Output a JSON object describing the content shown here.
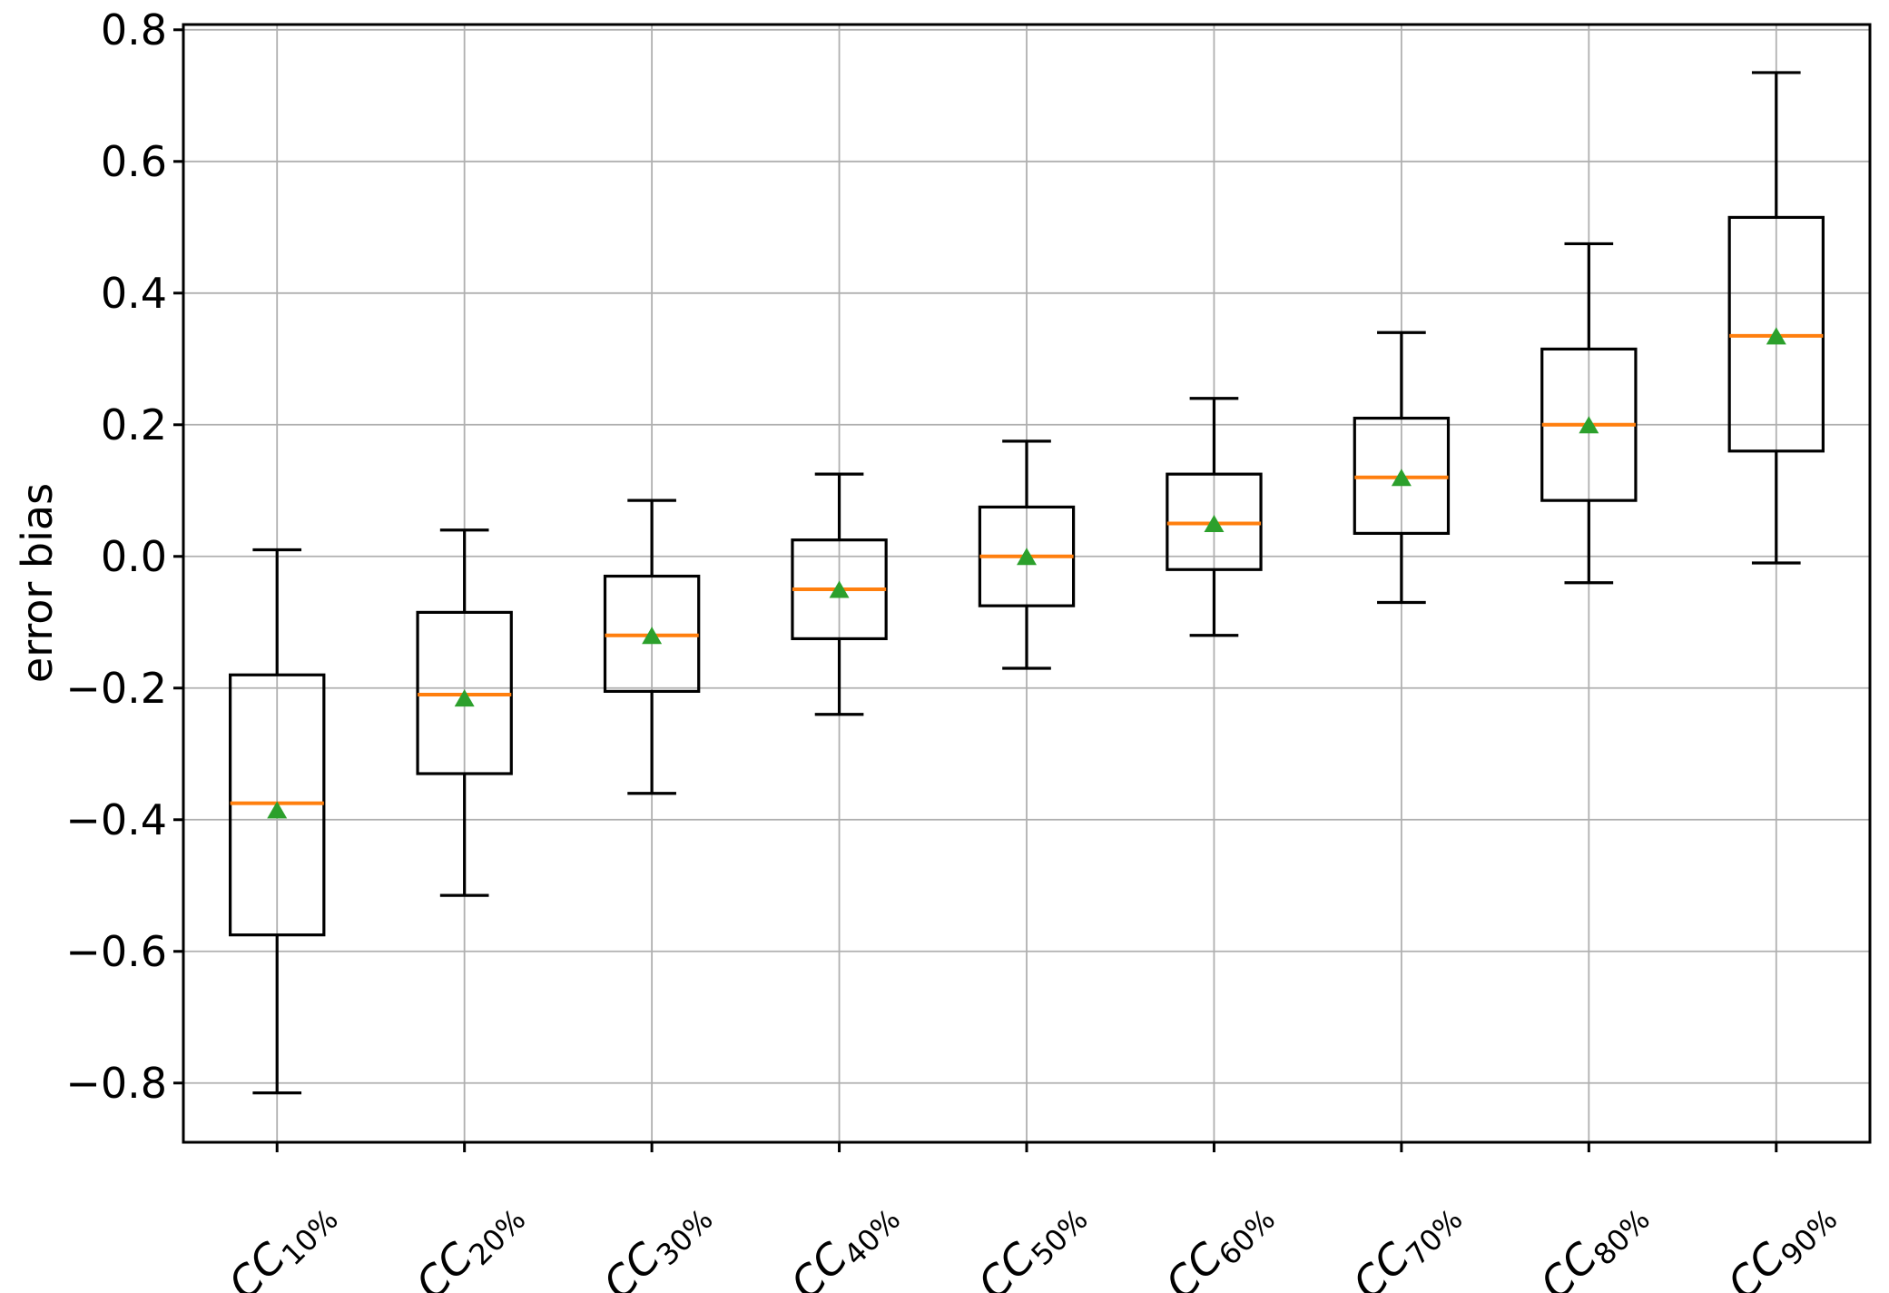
{
  "chart_data": {
    "type": "boxplot",
    "title": "",
    "xlabel": "",
    "ylabel": "error bias",
    "ylim": [
      -0.89,
      0.808
    ],
    "yticks": [
      0.8,
      0.6,
      0.4,
      0.2,
      0.0,
      -0.2,
      -0.4,
      -0.6,
      -0.8
    ],
    "ytick_labels": [
      "0.8",
      "0.6",
      "0.4",
      "0.2",
      "0.0",
      "−0.2",
      "−0.4",
      "−0.6",
      "−0.8"
    ],
    "grid": true,
    "legend_position": "none",
    "categories": [
      {
        "base": "CC",
        "subscript": "10%"
      },
      {
        "base": "CC",
        "subscript": "20%"
      },
      {
        "base": "CC",
        "subscript": "30%"
      },
      {
        "base": "CC",
        "subscript": "40%"
      },
      {
        "base": "CC",
        "subscript": "50%"
      },
      {
        "base": "CC",
        "subscript": "60%"
      },
      {
        "base": "CC",
        "subscript": "70%"
      },
      {
        "base": "CC",
        "subscript": "80%"
      },
      {
        "base": "CC",
        "subscript": "90%"
      }
    ],
    "boxes": [
      {
        "label": "CC10%",
        "whislo": -0.815,
        "q1": -0.575,
        "median": -0.375,
        "mean": -0.385,
        "q3": -0.18,
        "whishi": 0.01
      },
      {
        "label": "CC20%",
        "whislo": -0.515,
        "q1": -0.33,
        "median": -0.21,
        "mean": -0.215,
        "q3": -0.085,
        "whishi": 0.04
      },
      {
        "label": "CC30%",
        "whislo": -0.36,
        "q1": -0.205,
        "median": -0.12,
        "mean": -0.12,
        "q3": -0.03,
        "whishi": 0.085
      },
      {
        "label": "CC40%",
        "whislo": -0.24,
        "q1": -0.125,
        "median": -0.05,
        "mean": -0.05,
        "q3": 0.025,
        "whishi": 0.125
      },
      {
        "label": "CC50%",
        "whislo": -0.17,
        "q1": -0.075,
        "median": 0.0,
        "mean": 0.0,
        "q3": 0.075,
        "whishi": 0.175
      },
      {
        "label": "CC60%",
        "whislo": -0.12,
        "q1": -0.02,
        "median": 0.05,
        "mean": 0.05,
        "q3": 0.125,
        "whishi": 0.24
      },
      {
        "label": "CC70%",
        "whislo": -0.07,
        "q1": 0.035,
        "median": 0.12,
        "mean": 0.12,
        "q3": 0.21,
        "whishi": 0.34
      },
      {
        "label": "CC80%",
        "whislo": -0.04,
        "q1": 0.085,
        "median": 0.2,
        "mean": 0.2,
        "q3": 0.315,
        "whishi": 0.475
      },
      {
        "label": "CC90%",
        "whislo": -0.01,
        "q1": 0.16,
        "median": 0.335,
        "mean": 0.335,
        "q3": 0.515,
        "whishi": 0.735
      }
    ],
    "mean_marker_shape": "triangle-up",
    "colors": {
      "box_line": "#000000",
      "whisker_line": "#000000",
      "median_line": "#ff7f0e",
      "mean_marker": "#2ca02c",
      "grid_line": "#b0b0b0",
      "axis_line": "#000000",
      "tick_text": "#000000",
      "background": "#ffffff"
    }
  }
}
